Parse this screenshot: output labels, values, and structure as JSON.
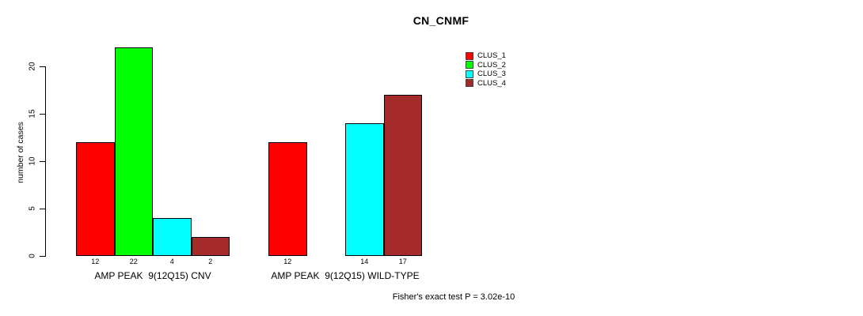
{
  "chart_data": {
    "type": "bar",
    "title": "CN_CNMF",
    "ylabel": "number of cases",
    "xlabel": "",
    "annotation": "Fisher's exact test P = 3.02e-10",
    "categories": [
      "AMP PEAK  9(12Q15) CNV",
      "AMP PEAK  9(12Q15) WILD-TYPE"
    ],
    "series": [
      {
        "name": "CLUS_1",
        "color": "#FF0000",
        "values": [
          12,
          12
        ]
      },
      {
        "name": "CLUS_2",
        "color": "#00FF00",
        "values": [
          22,
          0
        ]
      },
      {
        "name": "CLUS_3",
        "color": "#00FFFF",
        "values": [
          4,
          14
        ]
      },
      {
        "name": "CLUS_4",
        "color": "#A52A2A",
        "values": [
          2,
          17
        ]
      }
    ],
    "bar_value_labels": [
      [
        "12",
        "22",
        "4",
        "2"
      ],
      [
        "12",
        "",
        "14",
        "17"
      ]
    ],
    "yticks": [
      0,
      5,
      10,
      15,
      20
    ],
    "ylim": [
      0,
      22
    ],
    "grid": false,
    "legend_position": "top-right",
    "bar_outline_color": "#000000",
    "text_color": "#000000",
    "background_color": "#FFFFFF"
  }
}
